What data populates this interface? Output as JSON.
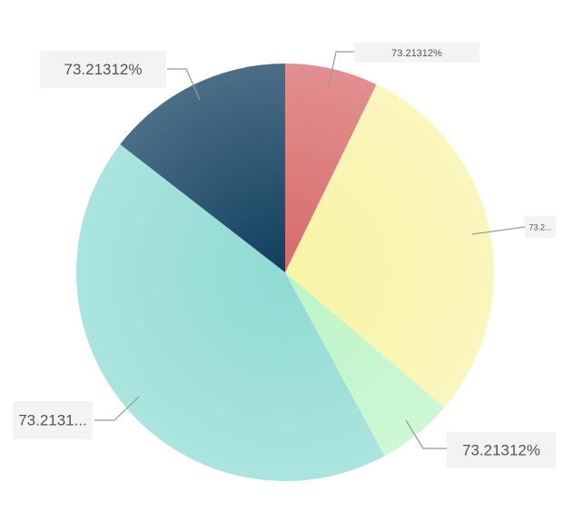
{
  "chart_data": {
    "type": "pie",
    "labels": [
      "73.21312%",
      "73.2...",
      "73.21312%",
      "73.2131...",
      "73.21312%"
    ],
    "values": [
      7.2,
      29,
      5.9,
      43.4,
      14.5
    ],
    "colors": [
      "#d86a6a",
      "#f8f4a6",
      "#bcf5c6",
      "#8fdbd3",
      "#0f3e5e"
    ]
  }
}
